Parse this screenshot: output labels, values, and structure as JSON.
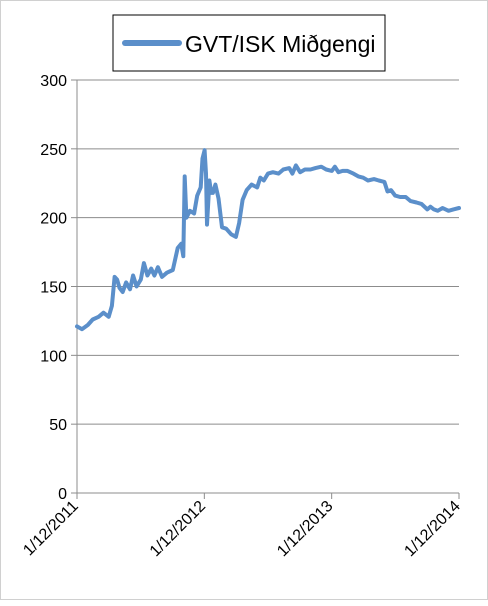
{
  "chart_data": {
    "type": "line",
    "title": "",
    "xlabel": "",
    "ylabel": "",
    "ylim": [
      0,
      300
    ],
    "yticks": [
      0,
      50,
      100,
      150,
      200,
      250,
      300
    ],
    "xlim": [
      "2011-12-01",
      "2014-12-01"
    ],
    "xtick_labels": [
      "1/12/2011",
      "1/12/2012",
      "1/12/2013",
      "1/12/2014"
    ],
    "x_axis_type": "date",
    "grid": "horizontal",
    "legend_position": "top",
    "series": [
      {
        "name": "GVT/ISK Miðgengi",
        "color": "#5b8fca",
        "points": [
          [
            "2011-12-01",
            121
          ],
          [
            "2011-12-15",
            119
          ],
          [
            "2012-01-01",
            122
          ],
          [
            "2012-01-15",
            126
          ],
          [
            "2012-02-01",
            128
          ],
          [
            "2012-02-15",
            131
          ],
          [
            "2012-03-01",
            128
          ],
          [
            "2012-03-10",
            136
          ],
          [
            "2012-03-18",
            157
          ],
          [
            "2012-03-25",
            155
          ],
          [
            "2012-04-01",
            149
          ],
          [
            "2012-04-10",
            146
          ],
          [
            "2012-04-20",
            153
          ],
          [
            "2012-05-01",
            148
          ],
          [
            "2012-05-10",
            158
          ],
          [
            "2012-05-20",
            150
          ],
          [
            "2012-06-01",
            155
          ],
          [
            "2012-06-10",
            167
          ],
          [
            "2012-06-20",
            158
          ],
          [
            "2012-07-01",
            163
          ],
          [
            "2012-07-10",
            158
          ],
          [
            "2012-07-20",
            164
          ],
          [
            "2012-08-01",
            157
          ],
          [
            "2012-08-15",
            160
          ],
          [
            "2012-09-01",
            162
          ],
          [
            "2012-09-15",
            178
          ],
          [
            "2012-09-25",
            181
          ],
          [
            "2012-10-01",
            172
          ],
          [
            "2012-10-05",
            230
          ],
          [
            "2012-10-10",
            200
          ],
          [
            "2012-10-20",
            205
          ],
          [
            "2012-11-01",
            203
          ],
          [
            "2012-11-10",
            216
          ],
          [
            "2012-11-20",
            222
          ],
          [
            "2012-11-25",
            243
          ],
          [
            "2012-12-01",
            249
          ],
          [
            "2012-12-05",
            232
          ],
          [
            "2012-12-08",
            195
          ],
          [
            "2012-12-12",
            213
          ],
          [
            "2012-12-15",
            227
          ],
          [
            "2012-12-20",
            218
          ],
          [
            "2012-12-25",
            218
          ],
          [
            "2013-01-01",
            224
          ],
          [
            "2013-01-10",
            214
          ],
          [
            "2013-01-20",
            193
          ],
          [
            "2013-02-01",
            192
          ],
          [
            "2013-02-15",
            188
          ],
          [
            "2013-03-01",
            186
          ],
          [
            "2013-03-10",
            196
          ],
          [
            "2013-03-20",
            213
          ],
          [
            "2013-04-01",
            220
          ],
          [
            "2013-04-15",
            224
          ],
          [
            "2013-05-01",
            222
          ],
          [
            "2013-05-10",
            229
          ],
          [
            "2013-05-20",
            227
          ],
          [
            "2013-06-01",
            232
          ],
          [
            "2013-06-15",
            233
          ],
          [
            "2013-07-01",
            232
          ],
          [
            "2013-07-15",
            235
          ],
          [
            "2013-08-01",
            236
          ],
          [
            "2013-08-10",
            232
          ],
          [
            "2013-08-20",
            238
          ],
          [
            "2013-09-01",
            233
          ],
          [
            "2013-09-15",
            235
          ],
          [
            "2013-10-01",
            235
          ],
          [
            "2013-10-15",
            236
          ],
          [
            "2013-11-01",
            237
          ],
          [
            "2013-11-15",
            235
          ],
          [
            "2013-12-01",
            234
          ],
          [
            "2013-12-10",
            237
          ],
          [
            "2013-12-20",
            233
          ],
          [
            "2014-01-01",
            234
          ],
          [
            "2014-01-15",
            234
          ],
          [
            "2014-02-01",
            232
          ],
          [
            "2014-02-15",
            230
          ],
          [
            "2014-03-01",
            229
          ],
          [
            "2014-03-15",
            227
          ],
          [
            "2014-04-01",
            228
          ],
          [
            "2014-04-15",
            227
          ],
          [
            "2014-05-01",
            226
          ],
          [
            "2014-05-10",
            219
          ],
          [
            "2014-05-20",
            220
          ],
          [
            "2014-06-01",
            216
          ],
          [
            "2014-06-15",
            215
          ],
          [
            "2014-07-01",
            215
          ],
          [
            "2014-07-15",
            212
          ],
          [
            "2014-08-01",
            211
          ],
          [
            "2014-08-15",
            210
          ],
          [
            "2014-09-01",
            206
          ],
          [
            "2014-09-10",
            208
          ],
          [
            "2014-09-20",
            206
          ],
          [
            "2014-10-01",
            205
          ],
          [
            "2014-10-15",
            207
          ],
          [
            "2014-11-01",
            205
          ],
          [
            "2014-11-15",
            206
          ],
          [
            "2014-12-01",
            207
          ]
        ]
      }
    ]
  }
}
